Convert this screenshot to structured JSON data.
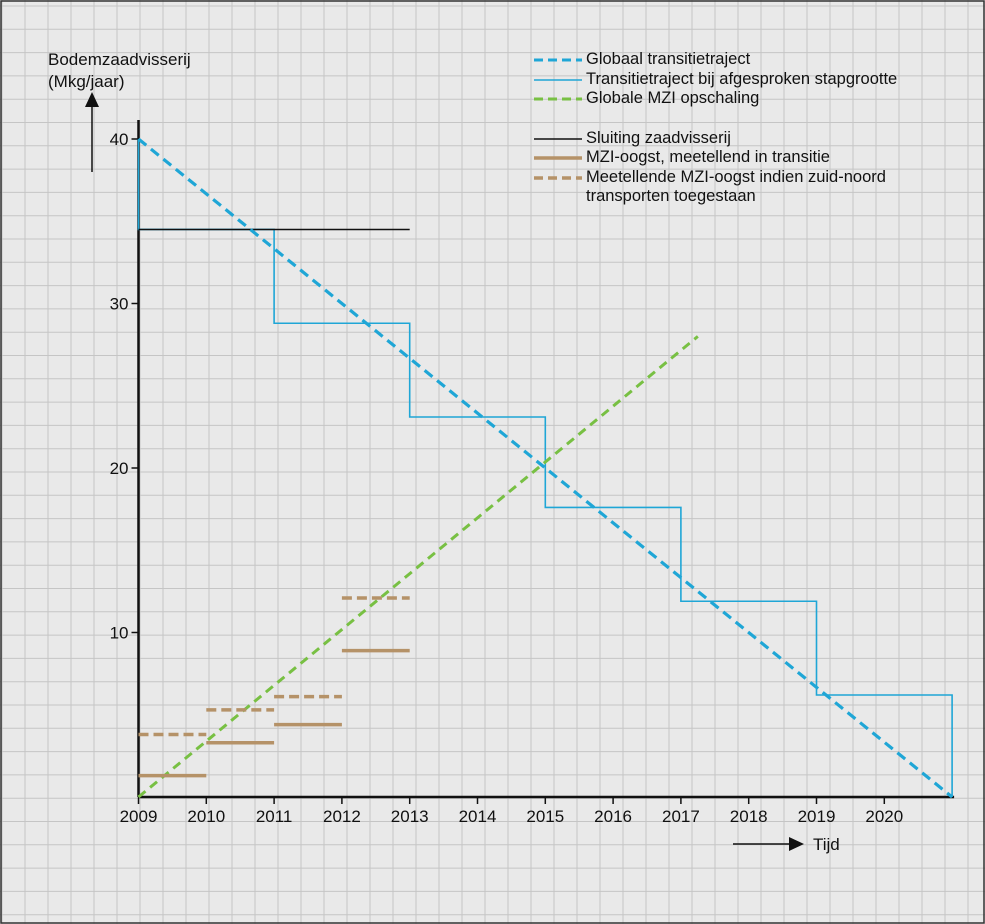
{
  "chart_data": {
    "type": "line",
    "ylabel_lines": [
      "Bodemzaadvisserij",
      "(Mkg/jaar)"
    ],
    "xlabel": "Tijd",
    "x_ticks": [
      2009,
      2010,
      2011,
      2012,
      2013,
      2014,
      2015,
      2016,
      2017,
      2018,
      2019,
      2020
    ],
    "y_ticks": [
      10,
      20,
      30,
      40
    ],
    "xlim": [
      2009,
      2021
    ],
    "ylim": [
      0,
      40
    ],
    "grid": true,
    "legend_position": "top-right",
    "colors": {
      "globaal": "#1fa6d6",
      "stap": "#1fa6d6",
      "mzi": "#78c043",
      "sluiting": "#111111",
      "oogst": "#b59268"
    },
    "series": [
      {
        "name": "Globaal transitietraject",
        "style": "dashed",
        "points": [
          [
            2009,
            40
          ],
          [
            2021,
            0
          ]
        ]
      },
      {
        "name": "Transitietraject bij afgesproken stapgrootte",
        "style": "solid",
        "points": [
          [
            2009,
            40
          ],
          [
            2009,
            34.5
          ],
          [
            2011,
            34.5
          ],
          [
            2011,
            28.8
          ],
          [
            2013,
            28.8
          ],
          [
            2013,
            23.1
          ],
          [
            2015,
            23.1
          ],
          [
            2015,
            17.6
          ],
          [
            2017,
            17.6
          ],
          [
            2017,
            11.9
          ],
          [
            2019,
            11.9
          ],
          [
            2019,
            6.2
          ],
          [
            2021,
            6.2
          ],
          [
            2021,
            0
          ]
        ]
      },
      {
        "name": "Globale MZI opschaling",
        "style": "dashed",
        "points": [
          [
            2009,
            0
          ],
          [
            2017.25,
            28
          ]
        ]
      },
      {
        "name": "Sluiting zaadvisserij",
        "style": "solid",
        "points": [
          [
            2009,
            34.5
          ],
          [
            2013,
            34.5
          ]
        ]
      },
      {
        "name": "MZI-oogst, meetellend in transitie",
        "style": "solid-thick",
        "segments": [
          {
            "x": [
              2009,
              2010
            ],
            "y": 1.3
          },
          {
            "x": [
              2010,
              2011
            ],
            "y": 3.3
          },
          {
            "x": [
              2011,
              2012
            ],
            "y": 4.4
          },
          {
            "x": [
              2012,
              2013
            ],
            "y": 8.9
          }
        ]
      },
      {
        "name": "Meetellende MZI-oogst indien zuid-noord transporten toegestaan",
        "style": "dashed-thick",
        "segments": [
          {
            "x": [
              2009,
              2010
            ],
            "y": 3.8
          },
          {
            "x": [
              2010,
              2011
            ],
            "y": 5.3
          },
          {
            "x": [
              2011,
              2012
            ],
            "y": 6.1
          },
          {
            "x": [
              2012,
              2013
            ],
            "y": 12.1
          }
        ]
      }
    ],
    "legend": {
      "group1": [
        {
          "label": "Globaal transitietraject",
          "key": "globaal",
          "style": "dashed"
        },
        {
          "label": "Transitietraject bij afgesproken stapgrootte",
          "key": "stap",
          "style": "solid"
        },
        {
          "label": "Globale MZI opschaling",
          "key": "mzi",
          "style": "dashed"
        }
      ],
      "group2": [
        {
          "label": "Sluiting zaadvisserij",
          "key": "sluiting",
          "style": "solid"
        },
        {
          "label": "MZI-oogst, meetellend in transitie",
          "key": "oogst",
          "style": "solid-thick"
        },
        {
          "label": "Meetellende MZI-oogst indien zuid-noord transporten toegestaan",
          "key": "oogst",
          "style": "dashed-thick"
        }
      ]
    }
  }
}
